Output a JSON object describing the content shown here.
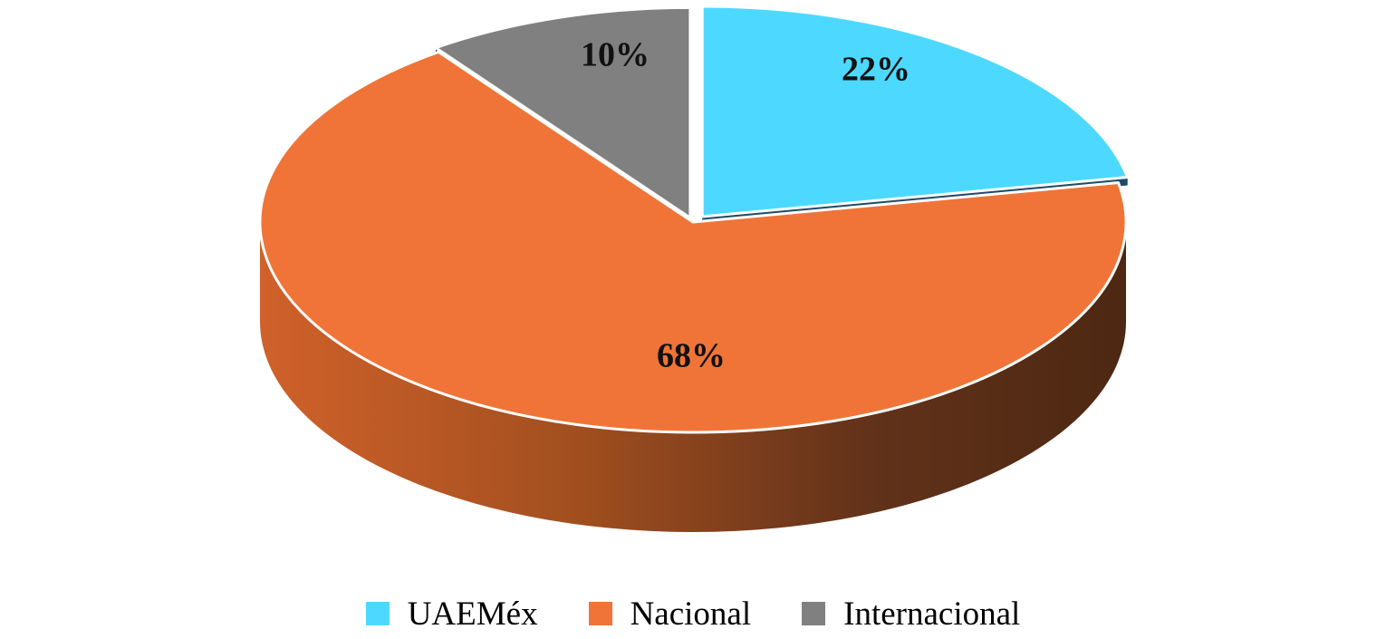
{
  "chart_data": {
    "type": "pie",
    "style": "3d-exploded",
    "title": "",
    "categories": [
      "UAEMéx",
      "Nacional",
      "Internacional"
    ],
    "values": [
      22,
      68,
      10
    ],
    "labels": [
      "22%",
      "68%",
      "10%"
    ],
    "colors": [
      "#4dd9ff",
      "#f07438",
      "#808080"
    ],
    "side_colors": [
      "#1f4a66",
      "#c45a27",
      "#2f3a3f"
    ],
    "legend_position": "bottom"
  }
}
